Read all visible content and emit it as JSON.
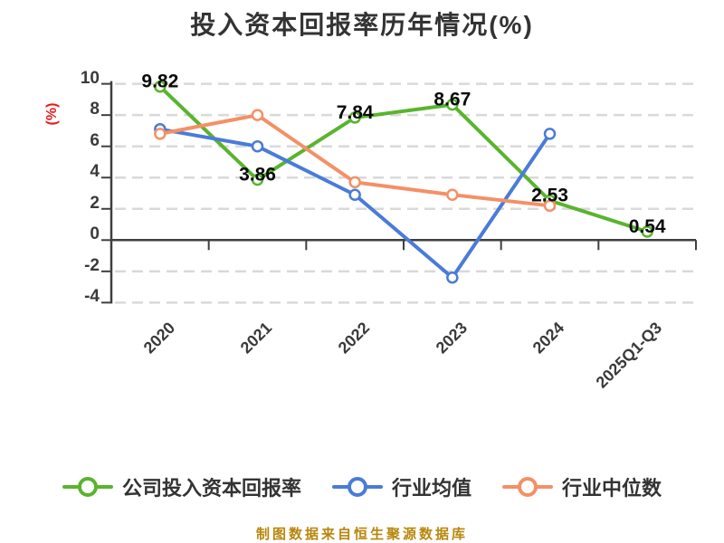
{
  "title": "投入资本回报率历年情况(%)",
  "y_axis_name": "(%)",
  "y_ticks": [
    "10",
    "8",
    "6",
    "4",
    "2",
    "0",
    "-2",
    "-4"
  ],
  "source_note": "制图数据来自恒生聚源数据库",
  "chart_data": {
    "type": "line",
    "title": "投入资本回报率历年情况(%)",
    "ylabel": "(%)",
    "ylim": [
      -4,
      10
    ],
    "y_tick_step": 2,
    "grid": "horizontal-dashed",
    "legend_position": "bottom",
    "categories": [
      "2020",
      "2021",
      "2022",
      "2023",
      "2024",
      "2025Q1-Q3"
    ],
    "series": [
      {
        "name": "公司投入资本回报率",
        "color": "#5ab42e",
        "marker_fill": "#ffffff",
        "values": [
          9.82,
          3.86,
          7.84,
          8.67,
          2.53,
          0.54
        ],
        "data_labels": [
          "9.82",
          "3.86",
          "7.84",
          "8.67",
          "2.53",
          "0.54"
        ]
      },
      {
        "name": "行业均值",
        "color": "#4a7bd8",
        "marker_fill": "#ffffff",
        "values": [
          7.1,
          6.0,
          2.9,
          -2.4,
          6.8,
          null
        ],
        "data_labels": null
      },
      {
        "name": "行业中位数",
        "color": "#f49066",
        "marker_fill": "#ffffff",
        "values": [
          6.8,
          8.0,
          3.7,
          2.9,
          2.2,
          null
        ],
        "data_labels": null
      }
    ]
  },
  "colors": {
    "title": "#333333",
    "axis": "#3f3f3f",
    "grid": "#d9d9d9",
    "tick_label": "#3a3a3a",
    "value_label": "#0a0a0a",
    "y_axis_name": "#e71d1d",
    "legend_text": "#333333",
    "source_note": "#b8860b",
    "background": "#ffffff"
  }
}
